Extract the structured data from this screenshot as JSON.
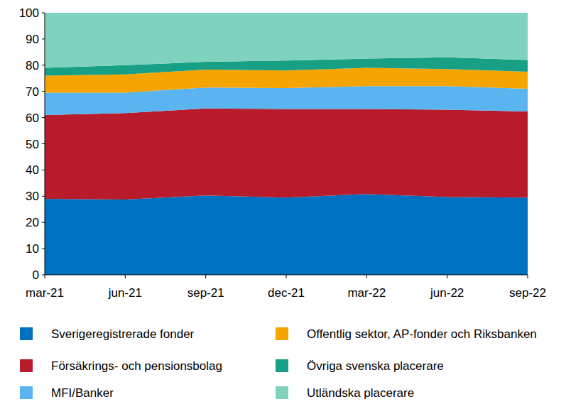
{
  "chart_data": {
    "type": "area",
    "stacked": true,
    "grid": false,
    "legend": "bottom",
    "categories": [
      "mar-21",
      "jun-21",
      "sep-21",
      "dec-21",
      "mar-22",
      "jun-22",
      "sep-22"
    ],
    "ylim": [
      0,
      100
    ],
    "yticks": [
      0,
      10,
      20,
      30,
      40,
      50,
      60,
      70,
      80,
      90,
      100
    ],
    "series": [
      {
        "name": "Sverigeregistrerade fonder",
        "color": "#0070c0",
        "values": [
          29,
          28.7,
          30.3,
          29.5,
          30.8,
          29.7,
          29.5
        ]
      },
      {
        "name": "Försäkrings- och pensionsbolag",
        "color": "#b81c2c",
        "values": [
          32,
          33,
          33.2,
          33.8,
          32.5,
          33.3,
          32.8
        ]
      },
      {
        "name": "MFI/Banker",
        "color": "#5ab4f0",
        "values": [
          8.5,
          7.8,
          8,
          8,
          8.7,
          9,
          8.7
        ]
      },
      {
        "name": "Offentlig sektor, AP-fonder och Riksbanken",
        "color": "#f5a400",
        "values": [
          6.5,
          7,
          6.8,
          6.7,
          7,
          6.5,
          6.5
        ]
      },
      {
        "name": "Övriga svenska placerare",
        "color": "#17a085",
        "values": [
          3,
          3.5,
          3,
          3.8,
          3.5,
          4.5,
          4.5
        ]
      },
      {
        "name": "Utländska placerare",
        "color": "#7fd3bd",
        "values": [
          21,
          20,
          18.7,
          18.2,
          17.5,
          17,
          18
        ]
      }
    ]
  }
}
